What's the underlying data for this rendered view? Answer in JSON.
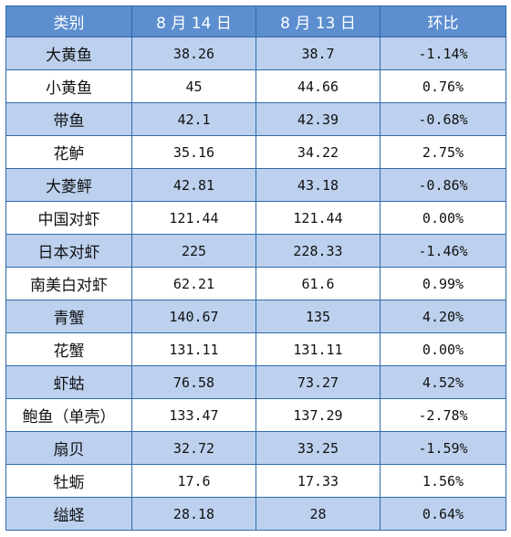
{
  "table": {
    "headers": [
      "类别",
      "8 月 14 日",
      "8 月 13 日",
      "环比"
    ],
    "rows": [
      {
        "name": "大黄鱼",
        "aug14": "38.26",
        "aug13": "38.7",
        "change": "-1.14%"
      },
      {
        "name": "小黄鱼",
        "aug14": "45",
        "aug13": "44.66",
        "change": "0.76%"
      },
      {
        "name": "带鱼",
        "aug14": "42.1",
        "aug13": "42.39",
        "change": "-0.68%"
      },
      {
        "name": "花鲈",
        "aug14": "35.16",
        "aug13": "34.22",
        "change": "2.75%"
      },
      {
        "name": "大菱鲆",
        "aug14": "42.81",
        "aug13": "43.18",
        "change": "-0.86%"
      },
      {
        "name": "中国对虾",
        "aug14": "121.44",
        "aug13": "121.44",
        "change": "0.00%"
      },
      {
        "name": "日本对虾",
        "aug14": "225",
        "aug13": "228.33",
        "change": "-1.46%"
      },
      {
        "name": "南美白对虾",
        "aug14": "62.21",
        "aug13": "61.6",
        "change": "0.99%"
      },
      {
        "name": "青蟹",
        "aug14": "140.67",
        "aug13": "135",
        "change": "4.20%"
      },
      {
        "name": "花蟹",
        "aug14": "131.11",
        "aug13": "131.11",
        "change": "0.00%"
      },
      {
        "name": "虾蛄",
        "aug14": "76.58",
        "aug13": "73.27",
        "change": "4.52%"
      },
      {
        "name": "鲍鱼（单壳）",
        "aug14": "133.47",
        "aug13": "137.29",
        "change": "-2.78%"
      },
      {
        "name": "扇贝",
        "aug14": "32.72",
        "aug13": "33.25",
        "change": "-1.59%"
      },
      {
        "name": "牡蛎",
        "aug14": "17.6",
        "aug13": "17.33",
        "change": "1.56%"
      },
      {
        "name": "缢蛏",
        "aug14": "28.18",
        "aug13": "28",
        "change": "0.64%"
      }
    ]
  },
  "colors": {
    "header_bg": "#5c8ed0",
    "shade_row_bg": "#bdd1ee",
    "border": "#2f6aa8"
  }
}
